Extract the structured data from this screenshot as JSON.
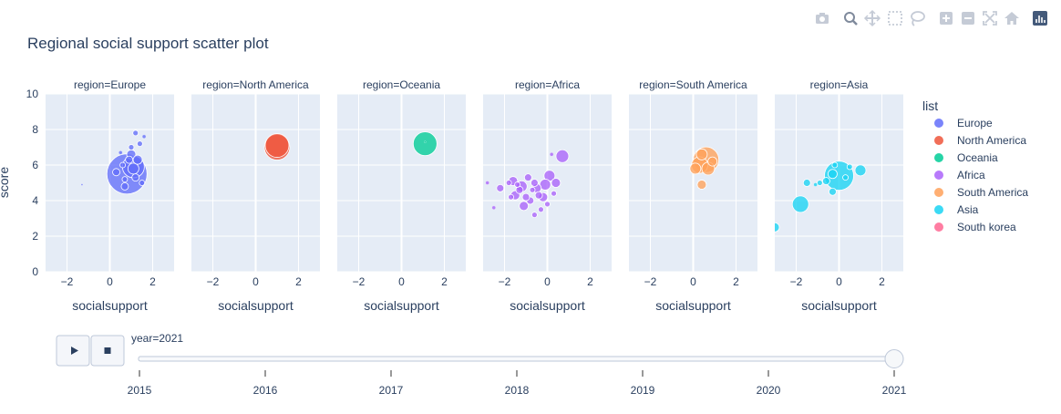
{
  "chart_data": {
    "type": "scatter",
    "title": "Regional social support scatter plot",
    "xlabel": "socialsupport",
    "ylabel": "score",
    "xlim": [
      -3,
      3
    ],
    "ylim": [
      0,
      10
    ],
    "x_ticks": [
      -2,
      0,
      2
    ],
    "y_ticks": [
      0,
      2,
      4,
      6,
      8,
      10
    ],
    "grid": true,
    "legend_title": "list",
    "legend_placement": "right",
    "panels": [
      {
        "label": "region=Europe",
        "region": "Europe",
        "color": "#636efa",
        "points": [
          {
            "x": 0.8,
            "y": 5.5,
            "size": 22
          },
          {
            "x": 1.1,
            "y": 5.9,
            "size": 12
          },
          {
            "x": 1.0,
            "y": 6.6,
            "size": 5
          },
          {
            "x": 1.2,
            "y": 7.8,
            "size": 3
          },
          {
            "x": 1.0,
            "y": 7.0,
            "size": 3
          },
          {
            "x": 1.4,
            "y": 7.2,
            "size": 3
          },
          {
            "x": 1.6,
            "y": 7.6,
            "size": 2
          },
          {
            "x": 0.9,
            "y": 6.3,
            "size": 4
          },
          {
            "x": 0.6,
            "y": 6.0,
            "size": 3
          },
          {
            "x": 0.3,
            "y": 5.6,
            "size": 4
          },
          {
            "x": 0.7,
            "y": 5.2,
            "size": 3
          },
          {
            "x": 1.2,
            "y": 5.3,
            "size": 4
          },
          {
            "x": 1.5,
            "y": 5.0,
            "size": 3
          },
          {
            "x": 0.7,
            "y": 4.8,
            "size": 4
          },
          {
            "x": 1.3,
            "y": 6.3,
            "size": 5
          },
          {
            "x": 0.5,
            "y": 6.7,
            "size": 2
          },
          {
            "x": -1.3,
            "y": 4.9,
            "size": 1
          },
          {
            "x": 1.1,
            "y": 5.8,
            "size": 6
          }
        ]
      },
      {
        "label": "region=North America",
        "region": "North America",
        "color": "#ef553b",
        "points": [
          {
            "x": 1.0,
            "y": 7.0,
            "size": 14
          },
          {
            "x": 1.0,
            "y": 7.1,
            "size": 13
          }
        ]
      },
      {
        "label": "region=Oceania",
        "region": "Oceania",
        "color": "#00cc96",
        "points": [
          {
            "x": 1.1,
            "y": 7.2,
            "size": 13
          },
          {
            "x": 1.1,
            "y": 7.3,
            "size": 1
          }
        ]
      },
      {
        "label": "region=Africa",
        "region": "Africa",
        "color": "#ab63fa",
        "points": [
          {
            "x": 0.7,
            "y": 6.5,
            "size": 7
          },
          {
            "x": 0.2,
            "y": 6.6,
            "size": 2
          },
          {
            "x": 0.1,
            "y": 5.4,
            "size": 6
          },
          {
            "x": -0.1,
            "y": 4.9,
            "size": 6
          },
          {
            "x": 0.4,
            "y": 5.0,
            "size": 5
          },
          {
            "x": -0.2,
            "y": 4.2,
            "size": 5
          },
          {
            "x": -0.4,
            "y": 4.3,
            "size": 4
          },
          {
            "x": -0.5,
            "y": 4.7,
            "size": 5
          },
          {
            "x": -0.8,
            "y": 4.0,
            "size": 4
          },
          {
            "x": -0.6,
            "y": 5.0,
            "size": 4
          },
          {
            "x": -1.2,
            "y": 4.8,
            "size": 6
          },
          {
            "x": -1.6,
            "y": 5.1,
            "size": 5
          },
          {
            "x": -1.5,
            "y": 4.3,
            "size": 5
          },
          {
            "x": -1.1,
            "y": 3.7,
            "size": 5
          },
          {
            "x": -0.9,
            "y": 5.3,
            "size": 4
          },
          {
            "x": -0.3,
            "y": 3.5,
            "size": 3
          },
          {
            "x": 0.0,
            "y": 3.8,
            "size": 3
          },
          {
            "x": -0.6,
            "y": 3.2,
            "size": 3
          },
          {
            "x": -1.8,
            "y": 5.0,
            "size": 3
          },
          {
            "x": -2.2,
            "y": 4.7,
            "size": 4
          },
          {
            "x": -2.5,
            "y": 3.6,
            "size": 2
          },
          {
            "x": -2.8,
            "y": 5.0,
            "size": 2
          },
          {
            "x": -1.0,
            "y": 4.2,
            "size": 4
          },
          {
            "x": -1.3,
            "y": 4.6,
            "size": 4
          },
          {
            "x": -0.7,
            "y": 4.6,
            "size": 3
          },
          {
            "x": 0.3,
            "y": 4.4,
            "size": 3
          },
          {
            "x": -1.4,
            "y": 4.9,
            "size": 3
          },
          {
            "x": -1.7,
            "y": 4.2,
            "size": 3
          }
        ]
      },
      {
        "label": "region=South America",
        "region": "South America",
        "color": "#ffa15a",
        "points": [
          {
            "x": 0.6,
            "y": 6.3,
            "size": 14
          },
          {
            "x": 0.3,
            "y": 6.0,
            "size": 9
          },
          {
            "x": 0.1,
            "y": 5.8,
            "size": 6
          },
          {
            "x": 0.7,
            "y": 5.8,
            "size": 7
          },
          {
            "x": 0.4,
            "y": 6.6,
            "size": 6
          },
          {
            "x": 0.9,
            "y": 6.2,
            "size": 5
          },
          {
            "x": 0.4,
            "y": 4.9,
            "size": 5
          }
        ]
      },
      {
        "label": "region=Asia",
        "region": "Asia",
        "color": "#19d3f3",
        "points": [
          {
            "x": 0.0,
            "y": 5.4,
            "size": 16
          },
          {
            "x": -1.8,
            "y": 3.8,
            "size": 9
          },
          {
            "x": 1.0,
            "y": 5.7,
            "size": 6
          },
          {
            "x": -1.5,
            "y": 5.0,
            "size": 4
          },
          {
            "x": -0.3,
            "y": 5.5,
            "size": 5
          },
          {
            "x": -0.3,
            "y": 4.5,
            "size": 4
          },
          {
            "x": 0.5,
            "y": 5.9,
            "size": 3
          },
          {
            "x": -0.6,
            "y": 5.1,
            "size": 4
          },
          {
            "x": -0.9,
            "y": 5.0,
            "size": 3
          },
          {
            "x": -0.2,
            "y": 6.0,
            "size": 3
          },
          {
            "x": -3.0,
            "y": 2.5,
            "size": 5
          },
          {
            "x": -1.1,
            "y": 4.9,
            "size": 2
          },
          {
            "x": 0.3,
            "y": 5.3,
            "size": 3
          }
        ]
      }
    ],
    "legend": [
      {
        "name": "Europe",
        "color": "#636efa"
      },
      {
        "name": "North America",
        "color": "#ef553b"
      },
      {
        "name": "Oceania",
        "color": "#00cc96"
      },
      {
        "name": "Africa",
        "color": "#ab63fa"
      },
      {
        "name": "South America",
        "color": "#ffa15a"
      },
      {
        "name": "Asia",
        "color": "#19d3f3"
      },
      {
        "name": "South korea",
        "color": "#ff6692"
      }
    ]
  },
  "slider": {
    "current_label": "year=2021",
    "steps": [
      "2015",
      "2016",
      "2017",
      "2018",
      "2019",
      "2020",
      "2021"
    ],
    "selected": "2021"
  },
  "controls": {
    "play_icon": "play-icon",
    "stop_icon": "stop-icon"
  },
  "modebar": [
    "camera-icon",
    "zoom-icon",
    "pan-icon",
    "box-select-icon",
    "lasso-select-icon",
    "zoom-in-icon",
    "zoom-out-icon",
    "autoscale-icon",
    "reset-axes-icon",
    "plotly-logo-icon"
  ],
  "colors": {
    "panel_bg": "#e5ecf6",
    "grid": "#ffffff",
    "text": "#2a3f5f",
    "slider_track": "#f8fafc",
    "slider_border": "#bec8d9"
  }
}
